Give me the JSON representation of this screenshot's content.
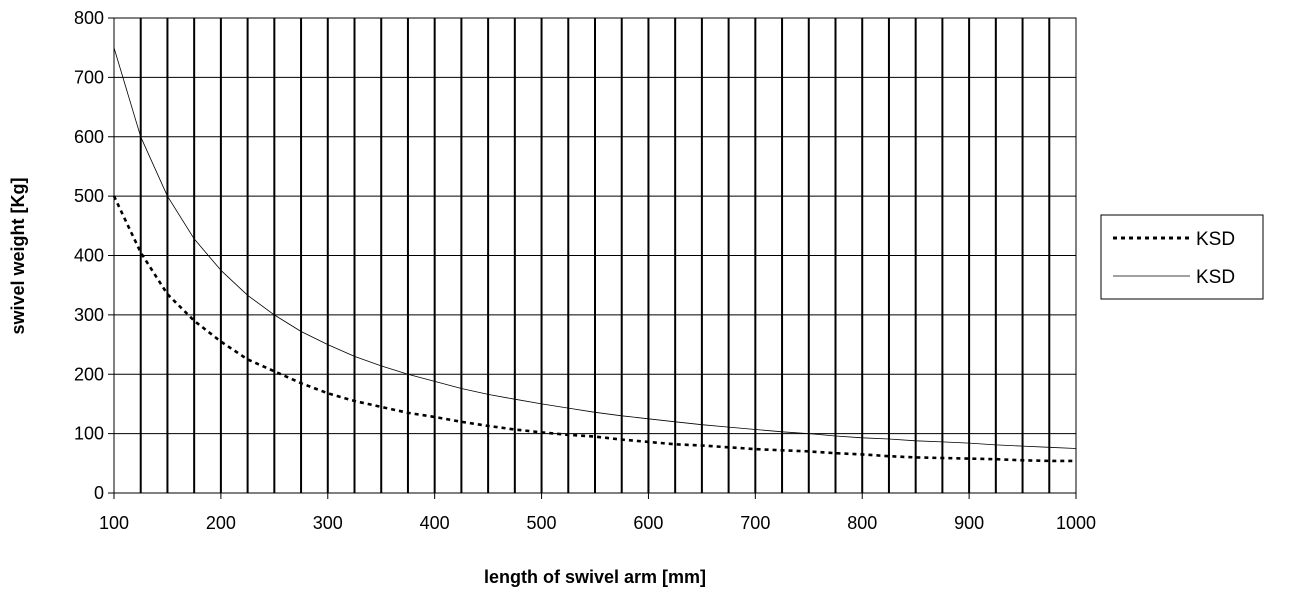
{
  "chart_data": {
    "type": "line",
    "title": "",
    "xlabel": "length of swivel arm [mm]",
    "ylabel": "swivel weight [Kg]",
    "xlim": [
      100,
      1000
    ],
    "ylim": [
      0,
      800
    ],
    "x_major_ticks": [
      100,
      200,
      300,
      400,
      500,
      600,
      700,
      800,
      900,
      1000
    ],
    "x_tick_labels": [
      "100",
      "200",
      "300",
      "400",
      "500",
      "600",
      "700",
      "800",
      "900",
      "1000"
    ],
    "y_ticks": [
      0,
      100,
      200,
      300,
      400,
      500,
      600,
      700,
      800
    ],
    "y_tick_labels": [
      "0",
      "100",
      "200",
      "300",
      "400",
      "500",
      "600",
      "700",
      "800"
    ],
    "x_gridline_step": 25,
    "grid": true,
    "legend_position": "right",
    "x": [
      100,
      125,
      150,
      175,
      200,
      225,
      250,
      275,
      300,
      325,
      350,
      375,
      400,
      425,
      450,
      475,
      500,
      525,
      550,
      575,
      600,
      625,
      650,
      675,
      700,
      725,
      750,
      775,
      800,
      825,
      850,
      875,
      900,
      925,
      950,
      975,
      1000
    ],
    "series": [
      {
        "name": "KSD",
        "style": "dotted",
        "color": "#000000",
        "values": [
          500,
          405,
          335,
          290,
          255,
          225,
          205,
          185,
          168,
          155,
          145,
          135,
          128,
          120,
          113,
          107,
          102,
          98,
          95,
          90,
          86,
          82,
          80,
          77,
          74,
          72,
          70,
          67,
          65,
          62,
          60,
          59,
          58,
          57,
          55,
          54,
          54
        ]
      },
      {
        "name": "KSD",
        "style": "solid-thin",
        "color": "#000000",
        "values": [
          750,
          600,
          500,
          428,
          375,
          333,
          300,
          272,
          250,
          230,
          214,
          200,
          188,
          176,
          166,
          158,
          150,
          143,
          136,
          130,
          125,
          120,
          115,
          111,
          107,
          103,
          100,
          96,
          93,
          91,
          88,
          86,
          84,
          81,
          79,
          77,
          75
        ]
      }
    ]
  }
}
